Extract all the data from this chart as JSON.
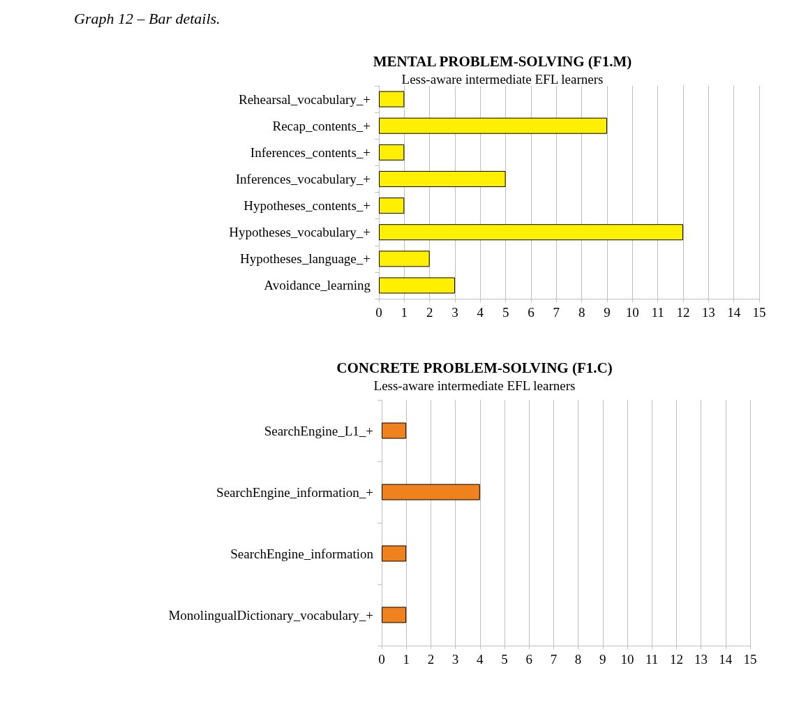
{
  "chart_data": [
    {
      "type": "bar",
      "orientation": "horizontal",
      "title": "MENTAL PROBLEM-SOLVING (F1.M)",
      "subtitle": "Less-aware intermediate EFL learners",
      "annotations": [
        "Graph 12 – Bar details."
      ],
      "categories": [
        "Rehearsal_vocabulary_+",
        "Recap_contents_+",
        "Inferences_contents_+",
        "Inferences_vocabulary_+",
        "Hypotheses_contents_+",
        "Hypotheses_vocabulary_+",
        "Hypotheses_language_+",
        "Avoidance_learning"
      ],
      "values": [
        1,
        9,
        1,
        5,
        1,
        12,
        2,
        3
      ],
      "color": "#ffef00",
      "xlim": [
        0,
        15
      ],
      "xticks": [
        0,
        1,
        2,
        3,
        4,
        5,
        6,
        7,
        8,
        9,
        10,
        11,
        12,
        13,
        14,
        15
      ],
      "grid": "x"
    },
    {
      "type": "bar",
      "orientation": "horizontal",
      "title": "CONCRETE PROBLEM-SOLVING (F1.C)",
      "subtitle": "Less-aware intermediate EFL learners",
      "categories": [
        "SearchEngine_L1_+",
        "SearchEngine_information_+",
        "SearchEngine_information",
        "MonolingualDictionary_vocabulary_+"
      ],
      "values": [
        1,
        4,
        1,
        1
      ],
      "color": "#f0821e",
      "xlim": [
        0,
        15
      ],
      "xticks": [
        0,
        1,
        2,
        3,
        4,
        5,
        6,
        7,
        8,
        9,
        10,
        11,
        12,
        13,
        14,
        15
      ],
      "grid": "x"
    }
  ]
}
